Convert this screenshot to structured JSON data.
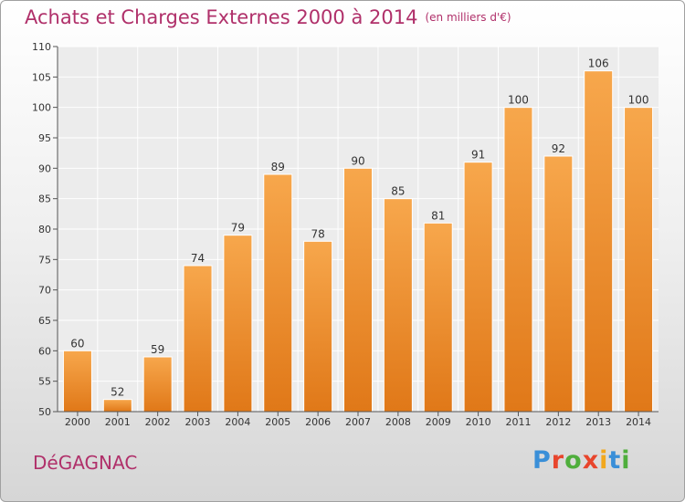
{
  "header": {
    "title": "Achats et Charges Externes 2000 à 2014",
    "units": "(en milliers d'€)"
  },
  "commune": "DéGAGNAC",
  "logo": {
    "text": "Proxiti",
    "colors": [
      "#3a8fd8",
      "#e8452c",
      "#4fae3c",
      "#e8452c",
      "#f2a81d",
      "#3a8fd8",
      "#4fae3c"
    ]
  },
  "chart_data": {
    "type": "bar",
    "title": "Achats et Charges Externes 2000 à 2014",
    "subtitle": "(en milliers d'€)",
    "categories": [
      "2000",
      "2001",
      "2002",
      "2003",
      "2004",
      "2005",
      "2006",
      "2007",
      "2008",
      "2009",
      "2010",
      "2011",
      "2012",
      "2013",
      "2014"
    ],
    "values": [
      60,
      52,
      59,
      74,
      79,
      89,
      78,
      90,
      85,
      81,
      91,
      100,
      92,
      106,
      100
    ],
    "ylim": [
      50,
      110
    ],
    "yticks": [
      50,
      55,
      60,
      65,
      70,
      75,
      80,
      85,
      90,
      95,
      100,
      105,
      110
    ],
    "grid": true,
    "bar_color": "#ef8f30"
  }
}
